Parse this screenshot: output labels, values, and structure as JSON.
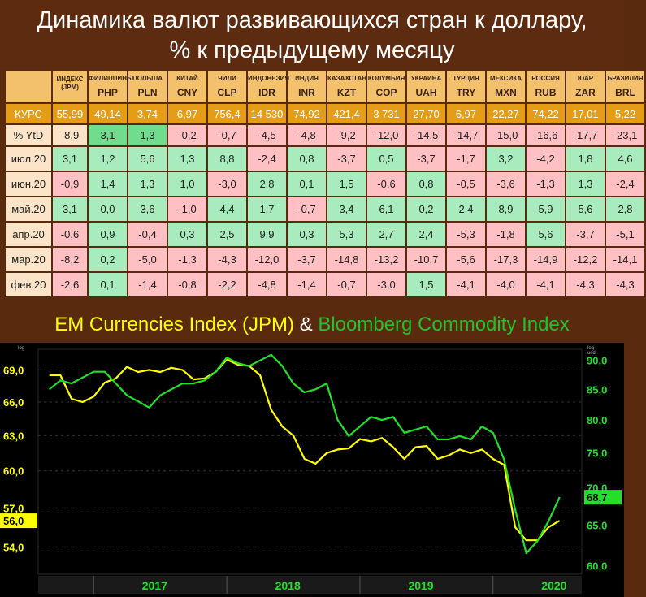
{
  "title": {
    "line1": "Динамика валют развивающихся стран к доллару,",
    "line2": "% к предыдущему месяцу"
  },
  "table": {
    "columns": [
      {
        "country": "ИНДЕКС (JPM)",
        "code": ""
      },
      {
        "country": "ФИЛИППИНЫ",
        "code": "PHP"
      },
      {
        "country": "ПОЛЬША",
        "code": "PLN"
      },
      {
        "country": "КИТАЙ",
        "code": "CNY"
      },
      {
        "country": "ЧИЛИ",
        "code": "CLP"
      },
      {
        "country": "ИНДОНЕЗИЯ",
        "code": "IDR"
      },
      {
        "country": "ИНДИЯ",
        "code": "INR"
      },
      {
        "country": "КАЗАХСТАН",
        "code": "KZT"
      },
      {
        "country": "КОЛУМБИЯ",
        "code": "COP"
      },
      {
        "country": "УКРАИНА",
        "code": "UAH"
      },
      {
        "country": "ТУРЦИЯ",
        "code": "TRY"
      },
      {
        "country": "МЕКСИКА",
        "code": "MXN"
      },
      {
        "country": "РОССИЯ",
        "code": "RUB"
      },
      {
        "country": "ЮАР",
        "code": "ZAR"
      },
      {
        "country": "БРАЗИЛИЯ",
        "code": "BRL"
      }
    ],
    "rows": [
      {
        "label": "КУРС",
        "values": [
          "55,99",
          "49,14",
          "3,74",
          "6,97",
          "756,4",
          "14 530",
          "74,92",
          "421,4",
          "3 731",
          "27,70",
          "6,97",
          "22,27",
          "74,22",
          "17,01",
          "5,22"
        ]
      },
      {
        "label": "% YtD",
        "values": [
          "-8,9",
          "3,1",
          "1,3",
          "-0,2",
          "-0,7",
          "-4,5",
          "-4,8",
          "-9,2",
          "-12,0",
          "-14,5",
          "-14,7",
          "-15,0",
          "-16,6",
          "-17,7",
          "-23,1"
        ]
      },
      {
        "label": "июл.20",
        "values": [
          "3,1",
          "1,2",
          "5,6",
          "1,3",
          "8,8",
          "-2,4",
          "0,8",
          "-3,7",
          "0,5",
          "-3,7",
          "-1,7",
          "3,2",
          "-4,2",
          "1,8",
          "4,6"
        ]
      },
      {
        "label": "июн.20",
        "values": [
          "-0,9",
          "1,4",
          "1,3",
          "1,0",
          "-3,0",
          "2,8",
          "0,1",
          "1,5",
          "-0,6",
          "0,8",
          "-0,5",
          "-3,6",
          "-1,3",
          "1,3",
          "-2,4"
        ]
      },
      {
        "label": "май.20",
        "values": [
          "3,1",
          "0,0",
          "3,6",
          "-1,0",
          "4,4",
          "1,7",
          "-0,7",
          "3,4",
          "6,1",
          "0,2",
          "2,4",
          "8,9",
          "5,9",
          "5,6",
          "2,8"
        ]
      },
      {
        "label": "апр.20",
        "values": [
          "-0,6",
          "0,9",
          "-0,4",
          "0,3",
          "2,5",
          "9,9",
          "0,3",
          "5,3",
          "2,7",
          "2,4",
          "-5,3",
          "-1,8",
          "5,6",
          "-3,7",
          "-5,1"
        ]
      },
      {
        "label": "мар.20",
        "values": [
          "-8,2",
          "0,2",
          "-5,0",
          "-1,3",
          "-4,3",
          "-12,0",
          "-3,7",
          "-14,8",
          "-13,2",
          "-10,7",
          "-5,6",
          "-17,3",
          "-14,9",
          "-12,2",
          "-14,1"
        ]
      },
      {
        "label": "фев.20",
        "values": [
          "-2,6",
          "0,1",
          "-1,4",
          "-0,8",
          "-2,2",
          "-4,8",
          "-1,4",
          "-0,7",
          "-3,0",
          "1,5",
          "-4,1",
          "-4,0",
          "-4,1",
          "-4,3",
          "-4,3"
        ]
      }
    ],
    "ytd_highlight": [
      null,
      "pos2",
      "pos2",
      "neg",
      "neg",
      "neg",
      "neg",
      "neg",
      "neg",
      "neg",
      "neg",
      "neg",
      "neg",
      "neg",
      "neg"
    ]
  },
  "subtitle": {
    "a": "EM Currencies Index (JPM)",
    "amp": "&",
    "b": "Bloomberg Commodity Index"
  },
  "colors": {
    "em": "#ffff00",
    "bcom": "#22e02a",
    "axisText": "#ffffff"
  },
  "chart_data": {
    "type": "line",
    "scale_note_left": "log",
    "scale_note_right": "log\nusd",
    "x_ticks": [
      "2017",
      "2018",
      "2019",
      "2020"
    ],
    "xlim": [
      "2016-08",
      "2020-09"
    ],
    "y_left": {
      "ticks": [
        "69,0",
        "66,0",
        "63,0",
        "60,0",
        "57,0",
        "54,0"
      ],
      "ylim": [
        52,
        71
      ],
      "last_label": "56,0"
    },
    "y_right": {
      "ticks": [
        "90,0",
        "85,0",
        "80,0",
        "75,0",
        "70,0",
        "65,0",
        "60,0"
      ],
      "ylim": [
        59,
        92
      ],
      "last_label": "68,7"
    },
    "series": [
      {
        "name": "EM Currencies Index (JPM)",
        "axis": "left",
        "x": [
          "2016-09",
          "2016-10",
          "2016-11",
          "2016-12",
          "2017-01",
          "2017-02",
          "2017-03",
          "2017-04",
          "2017-05",
          "2017-06",
          "2017-07",
          "2017-08",
          "2017-09",
          "2017-10",
          "2017-11",
          "2017-12",
          "2018-01",
          "2018-02",
          "2018-03",
          "2018-04",
          "2018-05",
          "2018-06",
          "2018-07",
          "2018-08",
          "2018-09",
          "2018-10",
          "2018-11",
          "2018-12",
          "2019-01",
          "2019-02",
          "2019-03",
          "2019-04",
          "2019-05",
          "2019-06",
          "2019-07",
          "2019-08",
          "2019-09",
          "2019-10",
          "2019-11",
          "2019-12",
          "2020-01",
          "2020-02",
          "2020-03",
          "2020-04",
          "2020-05",
          "2020-06",
          "2020-07"
        ],
        "y": [
          68.5,
          68.5,
          66.3,
          66.0,
          66.5,
          67.8,
          68.2,
          69.3,
          68.8,
          69.0,
          68.8,
          69.2,
          69.0,
          68.1,
          68.2,
          68.8,
          70.0,
          69.5,
          69.4,
          68.5,
          65.3,
          63.8,
          63.0,
          61.0,
          60.6,
          61.5,
          61.8,
          61.9,
          62.7,
          62.5,
          62.8,
          62.0,
          61.0,
          62.0,
          62.1,
          61.0,
          61.3,
          61.8,
          61.5,
          61.8,
          61.0,
          60.5,
          55.5,
          54.5,
          54.5,
          55.5,
          56.0
        ]
      },
      {
        "name": "Bloomberg Commodity Index",
        "axis": "right",
        "x": [
          "2016-09",
          "2016-10",
          "2016-11",
          "2016-12",
          "2017-01",
          "2017-02",
          "2017-03",
          "2017-04",
          "2017-05",
          "2017-06",
          "2017-07",
          "2017-08",
          "2017-09",
          "2017-10",
          "2017-11",
          "2017-12",
          "2018-01",
          "2018-02",
          "2018-03",
          "2018-04",
          "2018-05",
          "2018-06",
          "2018-07",
          "2018-08",
          "2018-09",
          "2018-10",
          "2018-11",
          "2018-12",
          "2019-01",
          "2019-02",
          "2019-03",
          "2019-04",
          "2019-05",
          "2019-06",
          "2019-07",
          "2019-08",
          "2019-09",
          "2019-10",
          "2019-11",
          "2019-12",
          "2020-01",
          "2020-02",
          "2020-03",
          "2020-04",
          "2020-05",
          "2020-06",
          "2020-07"
        ],
        "y": [
          85.0,
          86.5,
          86.0,
          87.0,
          88.0,
          88.0,
          86.0,
          84.0,
          83.0,
          82.0,
          84.0,
          85.0,
          86.0,
          86.0,
          86.5,
          88.0,
          90.5,
          89.5,
          89.0,
          90.0,
          91.0,
          89.0,
          86.0,
          84.5,
          85.0,
          86.0,
          80.0,
          77.5,
          79.0,
          80.5,
          80.0,
          80.5,
          78.0,
          78.5,
          79.0,
          77.0,
          77.0,
          77.5,
          77.0,
          79.0,
          78.0,
          74.0,
          67.0,
          61.5,
          63.0,
          65.5,
          68.7
        ]
      }
    ]
  }
}
